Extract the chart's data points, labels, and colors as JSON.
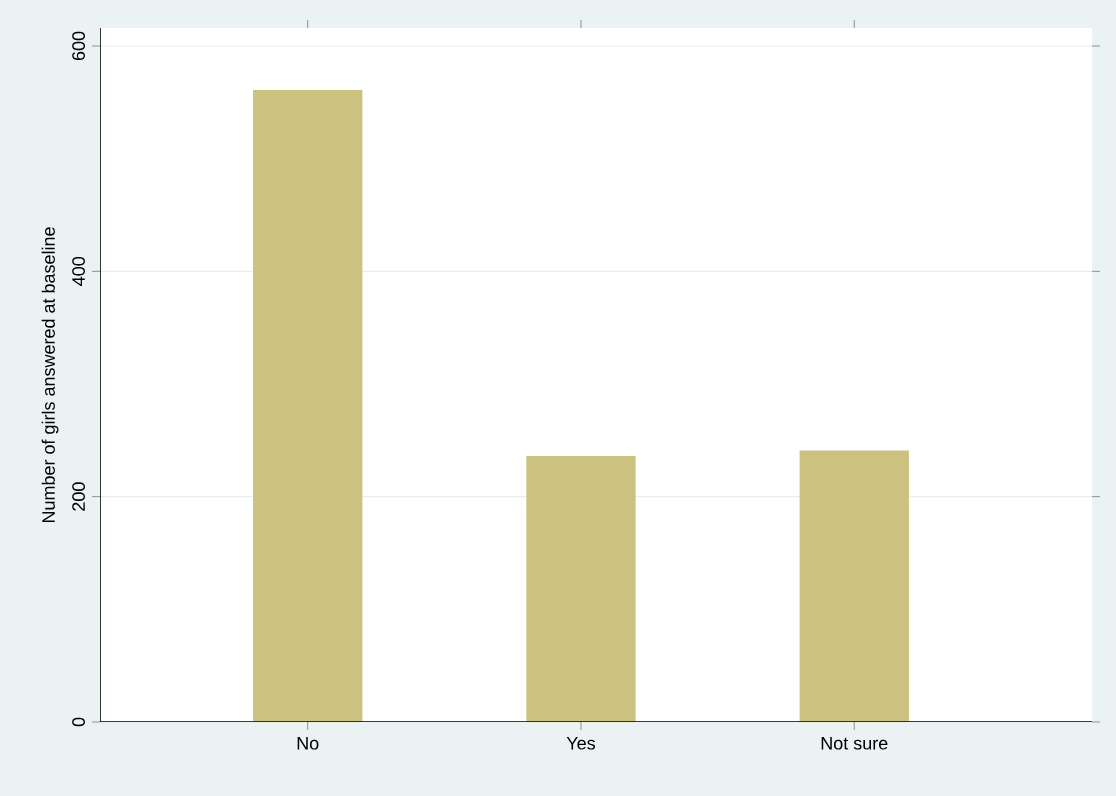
{
  "chart_data": {
    "type": "bar",
    "ylabel": "Number of girls answered at baseline",
    "categories": [
      "No",
      "Yes",
      "Not sure"
    ],
    "values": [
      561,
      236,
      241
    ],
    "color": "#cbc27f",
    "ylim": [
      0,
      616
    ],
    "yticks": [
      0,
      200,
      400,
      600
    ],
    "grid": "y"
  }
}
